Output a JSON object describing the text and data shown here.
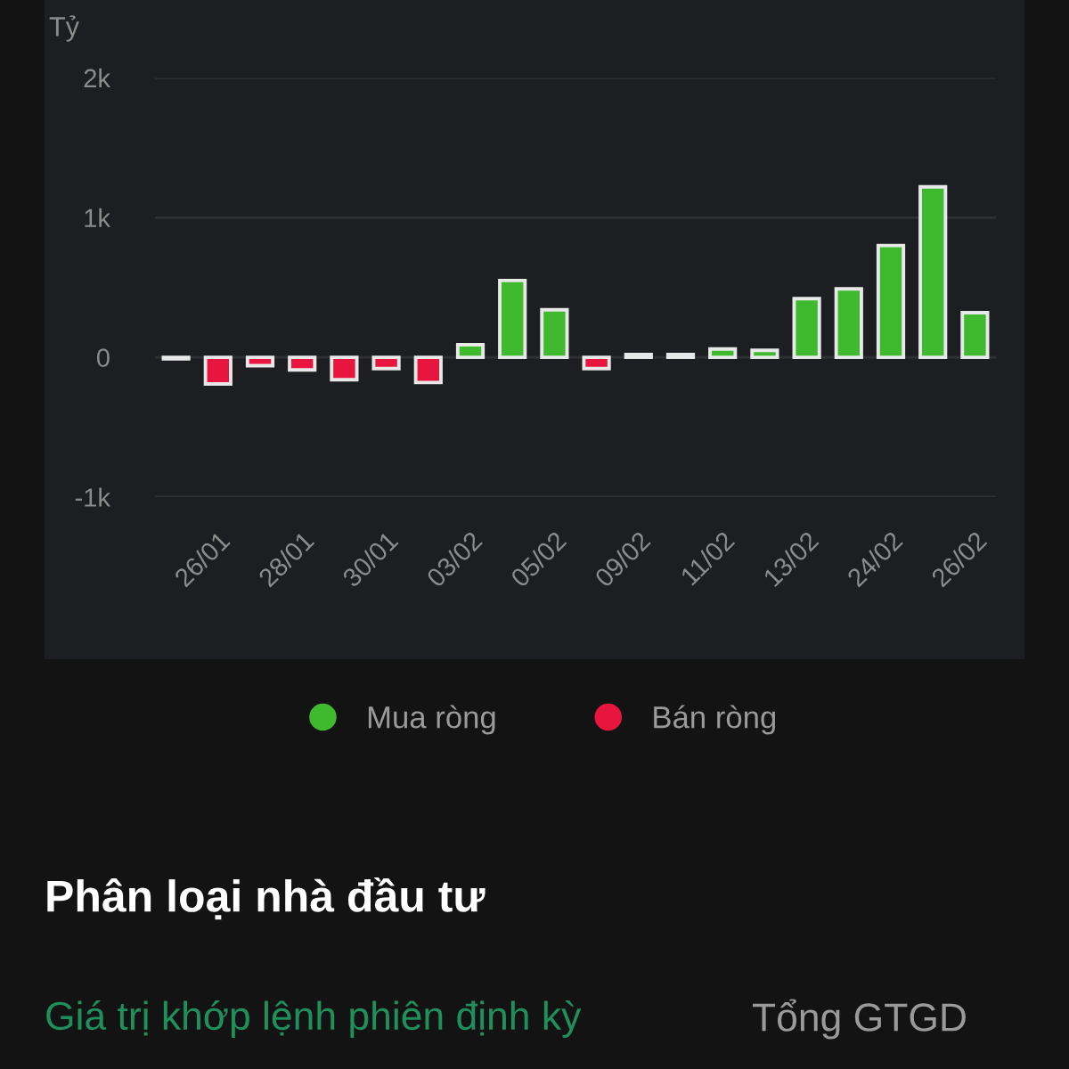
{
  "chart_data": {
    "type": "bar",
    "stacked": true,
    "ylabel": "Tỷ",
    "categories": [
      null,
      "26/01",
      null,
      "28/01",
      null,
      "30/01",
      null,
      "03/02",
      null,
      "05/02",
      null,
      "09/02",
      null,
      "11/02",
      null,
      "13/02",
      null,
      "24/02",
      null,
      "26/02"
    ],
    "series": [
      {
        "name": "Mua ròng",
        "color": "#3fba2e",
        "values": [
          null,
          null,
          null,
          null,
          null,
          null,
          null,
          90,
          550,
          340,
          null,
          20,
          20,
          60,
          50,
          420,
          490,
          800,
          1220,
          320
        ]
      },
      {
        "name": "Bán ròng",
        "color": "#e8163f",
        "values": [
          -10,
          -190,
          -60,
          -90,
          -160,
          -80,
          -180,
          null,
          null,
          null,
          -80,
          null,
          null,
          null,
          null,
          null,
          null,
          null,
          null,
          null
        ]
      }
    ],
    "ylim": [
      -1000,
      2000
    ],
    "yticks": [
      {
        "value": -1000,
        "label": "-1k"
      },
      0,
      {
        "value": 1000,
        "label": "1k"
      },
      {
        "value": 2000,
        "label": "2k"
      }
    ],
    "grid": "y",
    "legend": "bottom",
    "annotations": [
      "Phân loại nhà đầu tư",
      "Giá trị khớp lệnh phiên định kỳ",
      "Tổng GTGD"
    ]
  }
}
